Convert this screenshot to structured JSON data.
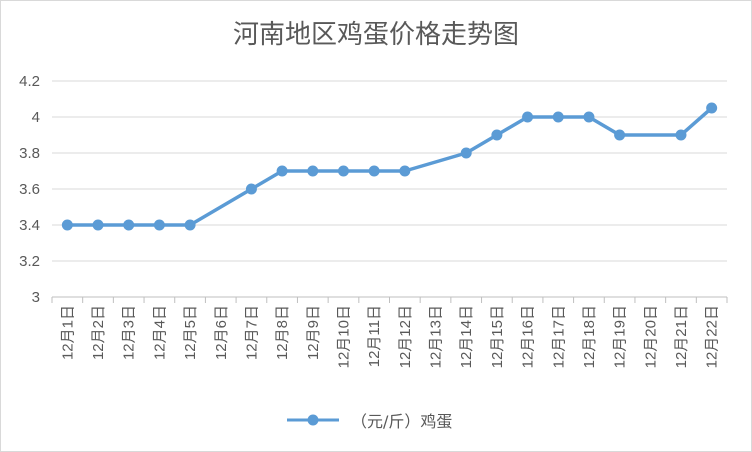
{
  "chart_data": {
    "type": "line",
    "title": "河南地区鸡蛋价格走势图",
    "categories": [
      "12月1日",
      "12月2日",
      "12月3日",
      "12月4日",
      "12月5日",
      "12月6日",
      "12月7日",
      "12月8日",
      "12月9日",
      "12月10日",
      "12月11日",
      "12月12日",
      "12月13日",
      "12月14日",
      "12月15日",
      "12月16日",
      "12月17日",
      "12月18日",
      "12月19日",
      "12月20日",
      "12月21日",
      "12月22日"
    ],
    "series": [
      {
        "name": "（元/斤）鸡蛋",
        "values": [
          3.4,
          3.4,
          3.4,
          3.4,
          3.4,
          null,
          3.6,
          3.7,
          3.7,
          3.7,
          3.7,
          3.7,
          null,
          3.8,
          3.9,
          4.0,
          4.0,
          4.0,
          3.9,
          null,
          3.9,
          4.05
        ]
      }
    ],
    "ylim": [
      3,
      4.2
    ],
    "yticks": [
      "3",
      "3.2",
      "3.4",
      "3.6",
      "3.8",
      "4",
      "4.2"
    ],
    "grid": true,
    "legend_position": "bottom",
    "line_color": "#5b9bd5",
    "grid_color": "#d9d9d9"
  }
}
